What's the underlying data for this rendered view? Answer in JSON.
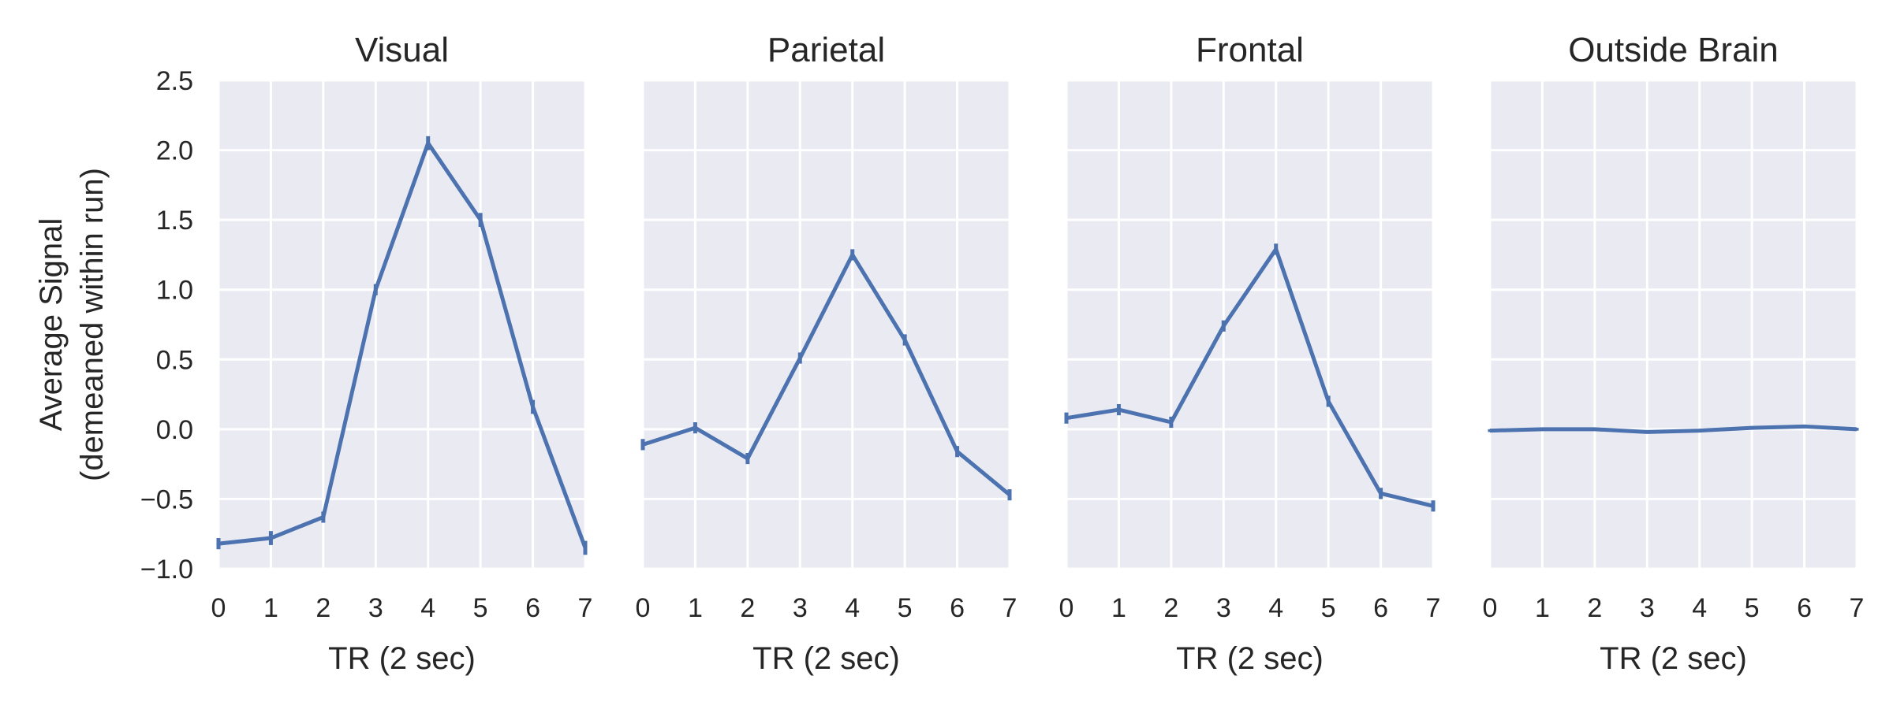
{
  "chart_data": {
    "type": "line",
    "ylabel": [
      "Average Signal",
      "(demeaned within run)"
    ],
    "ylim": [
      -1.0,
      2.5
    ],
    "yticks": [
      -1.0,
      -0.5,
      0.0,
      0.5,
      1.0,
      1.5,
      2.0,
      2.5
    ],
    "ytick_labels": [
      "−1.0",
      "−0.5",
      "0.0",
      "0.5",
      "1.0",
      "1.5",
      "2.0",
      "2.5"
    ],
    "xlim": [
      0,
      7
    ],
    "xticks": [
      0,
      1,
      2,
      3,
      4,
      5,
      6,
      7
    ],
    "grid": true,
    "colors": {
      "line": "#4c72b0",
      "background": "#eaeaf2",
      "grid": "#ffffff",
      "text": "#262626"
    },
    "panels": [
      {
        "title": "Visual",
        "xlabel": "TR (2 sec)",
        "x": [
          0,
          1,
          2,
          3,
          4,
          5,
          6,
          7
        ],
        "y": [
          -0.82,
          -0.78,
          -0.63,
          1.0,
          2.05,
          1.5,
          0.16,
          -0.85
        ],
        "err": [
          0.04,
          0.05,
          0.04,
          0.04,
          0.05,
          0.05,
          0.05,
          0.05
        ]
      },
      {
        "title": "Parietal",
        "xlabel": "TR (2 sec)",
        "x": [
          0,
          1,
          2,
          3,
          4,
          5,
          6,
          7
        ],
        "y": [
          -0.11,
          0.01,
          -0.21,
          0.51,
          1.25,
          0.64,
          -0.16,
          -0.47
        ],
        "err": [
          0.04,
          0.04,
          0.04,
          0.04,
          0.04,
          0.04,
          0.04,
          0.04
        ]
      },
      {
        "title": "Frontal",
        "xlabel": "TR (2 sec)",
        "x": [
          0,
          1,
          2,
          3,
          4,
          5,
          6,
          7
        ],
        "y": [
          0.08,
          0.14,
          0.05,
          0.74,
          1.29,
          0.2,
          -0.46,
          -0.55
        ],
        "err": [
          0.04,
          0.04,
          0.04,
          0.04,
          0.04,
          0.04,
          0.04,
          0.04
        ]
      },
      {
        "title": "Outside Brain",
        "xlabel": "TR (2 sec)",
        "x": [
          0,
          1,
          2,
          3,
          4,
          5,
          6,
          7
        ],
        "y": [
          -0.01,
          0.0,
          0.0,
          -0.02,
          -0.01,
          0.01,
          0.02,
          0.0
        ],
        "err": [
          0.01,
          0.01,
          0.01,
          0.01,
          0.01,
          0.01,
          0.01,
          0.01
        ]
      }
    ]
  }
}
